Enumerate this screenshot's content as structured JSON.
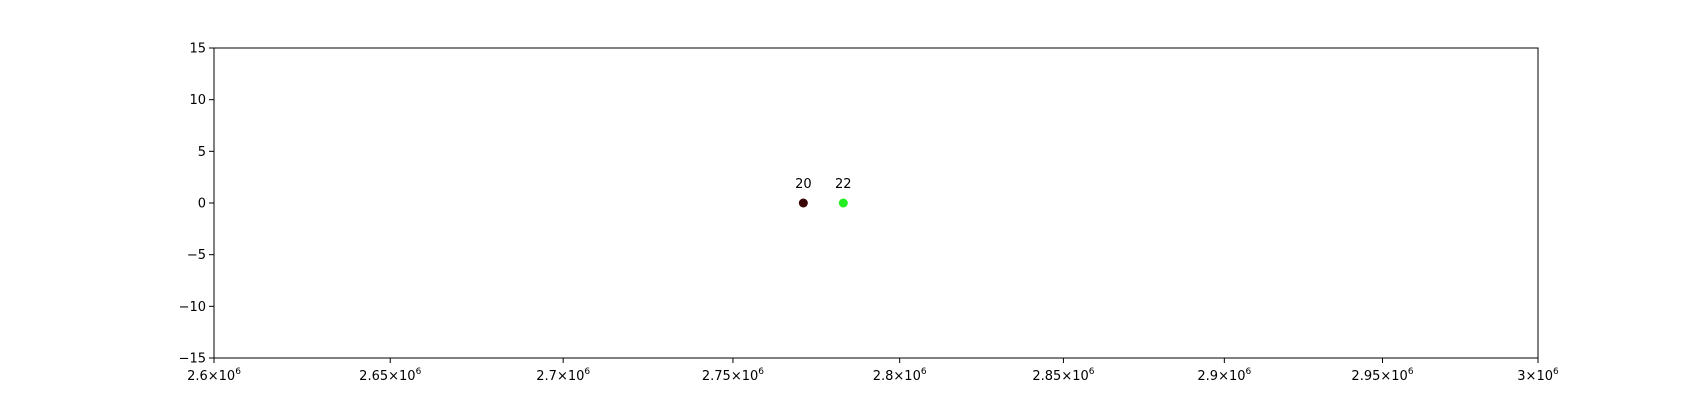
{
  "chart_data": {
    "type": "scatter",
    "title": "",
    "xlabel": "",
    "ylabel": "",
    "xlim": [
      2600000,
      3000000
    ],
    "ylim": [
      -15,
      15
    ],
    "xscale": "log",
    "grid": false,
    "x_ticks": [
      {
        "value": 2600000,
        "mantissa": "2.6",
        "exponent": "6"
      },
      {
        "value": 2650000,
        "mantissa": "2.65",
        "exponent": "6"
      },
      {
        "value": 2700000,
        "mantissa": "2.7",
        "exponent": "6"
      },
      {
        "value": 2750000,
        "mantissa": "2.75",
        "exponent": "6"
      },
      {
        "value": 2800000,
        "mantissa": "2.8",
        "exponent": "6"
      },
      {
        "value": 2850000,
        "mantissa": "2.85",
        "exponent": "6"
      },
      {
        "value": 2900000,
        "mantissa": "2.9",
        "exponent": "6"
      },
      {
        "value": 2950000,
        "mantissa": "2.95",
        "exponent": "6"
      },
      {
        "value": 3000000,
        "mantissa": "3",
        "exponent": "6"
      }
    ],
    "y_ticks": [
      {
        "value": 15,
        "label": "15"
      },
      {
        "value": 10,
        "label": "10"
      },
      {
        "value": 5,
        "label": "5"
      },
      {
        "value": 0,
        "label": "0"
      },
      {
        "value": -5,
        "label": "−5"
      },
      {
        "value": -10,
        "label": "−10"
      },
      {
        "value": -15,
        "label": "−15"
      }
    ],
    "points": [
      {
        "x": 2771000,
        "y": 0,
        "label": "20",
        "color": "#3a0505"
      },
      {
        "x": 2783000,
        "y": 0,
        "label": "22",
        "color": "#22ee22"
      }
    ]
  }
}
